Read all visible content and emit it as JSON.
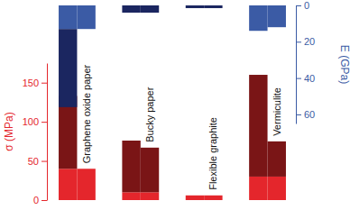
{
  "chart_data": {
    "type": "bar",
    "stacked": true,
    "categories": [
      "Graphene oxide paper",
      null,
      "Bucky paper",
      null,
      "Flexible graphite",
      null,
      "Vermiculite",
      null
    ],
    "y_label": "σ (MPa)",
    "y2_label": "E (GPa)",
    "ylim": [
      0,
      175
    ],
    "yticks": [
      0,
      50,
      100,
      150
    ],
    "y2lim": [
      0,
      65
    ],
    "y2ticks": [
      0,
      20,
      40,
      60
    ],
    "color": "#e4262c",
    "series": [
      {
        "color": "#e4262c",
        "values": [
          40,
          40,
          10,
          10,
          6,
          6,
          30,
          30
        ]
      },
      {
        "color": "#7a1516",
        "values": [
          93,
          0,
          66,
          57,
          0,
          0,
          130,
          45
        ]
      },
      {
        "color": "#3b5ba5",
        "axis": "y2",
        "values": [
          13,
          13,
          0,
          0,
          0,
          0,
          14,
          12
        ]
      },
      {
        "color": "#1b2660",
        "axis": "y2",
        "values": [
          43,
          0,
          4,
          4,
          1.5,
          1.5,
          0,
          0
        ]
      }
    ]
  }
}
